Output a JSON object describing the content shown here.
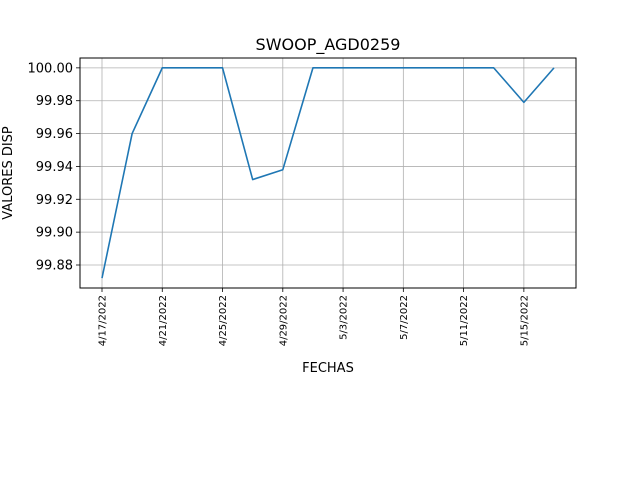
{
  "chart_data": {
    "type": "line",
    "title": "SWOOP_AGD0259",
    "xlabel": "FECHAS",
    "ylabel": "VALORES DISP",
    "x": [
      "4/17/2022",
      "4/19/2022",
      "4/21/2022",
      "4/23/2022",
      "4/25/2022",
      "4/27/2022",
      "4/29/2022",
      "5/1/2022",
      "5/3/2022",
      "5/5/2022",
      "5/7/2022",
      "5/9/2022",
      "5/11/2022",
      "5/13/2022",
      "5/15/2022",
      "5/17/2022"
    ],
    "series": [
      {
        "values": [
          99.872,
          99.96,
          100.0,
          100.0,
          100.0,
          99.932,
          99.938,
          100.0,
          100.0,
          100.0,
          100.0,
          100.0,
          100.0,
          100.0,
          99.979,
          100.0
        ]
      }
    ],
    "xticks": [
      "4/17/2022",
      "4/21/2022",
      "4/25/2022",
      "4/29/2022",
      "5/3/2022",
      "5/7/2022",
      "5/11/2022",
      "5/15/2022"
    ],
    "yticks": [
      "99.88",
      "99.90",
      "99.92",
      "99.94",
      "99.96",
      "99.98",
      "100.00"
    ],
    "ylim": [
      99.866,
      100.006
    ],
    "grid": true,
    "line_color": "#1f77b4"
  }
}
